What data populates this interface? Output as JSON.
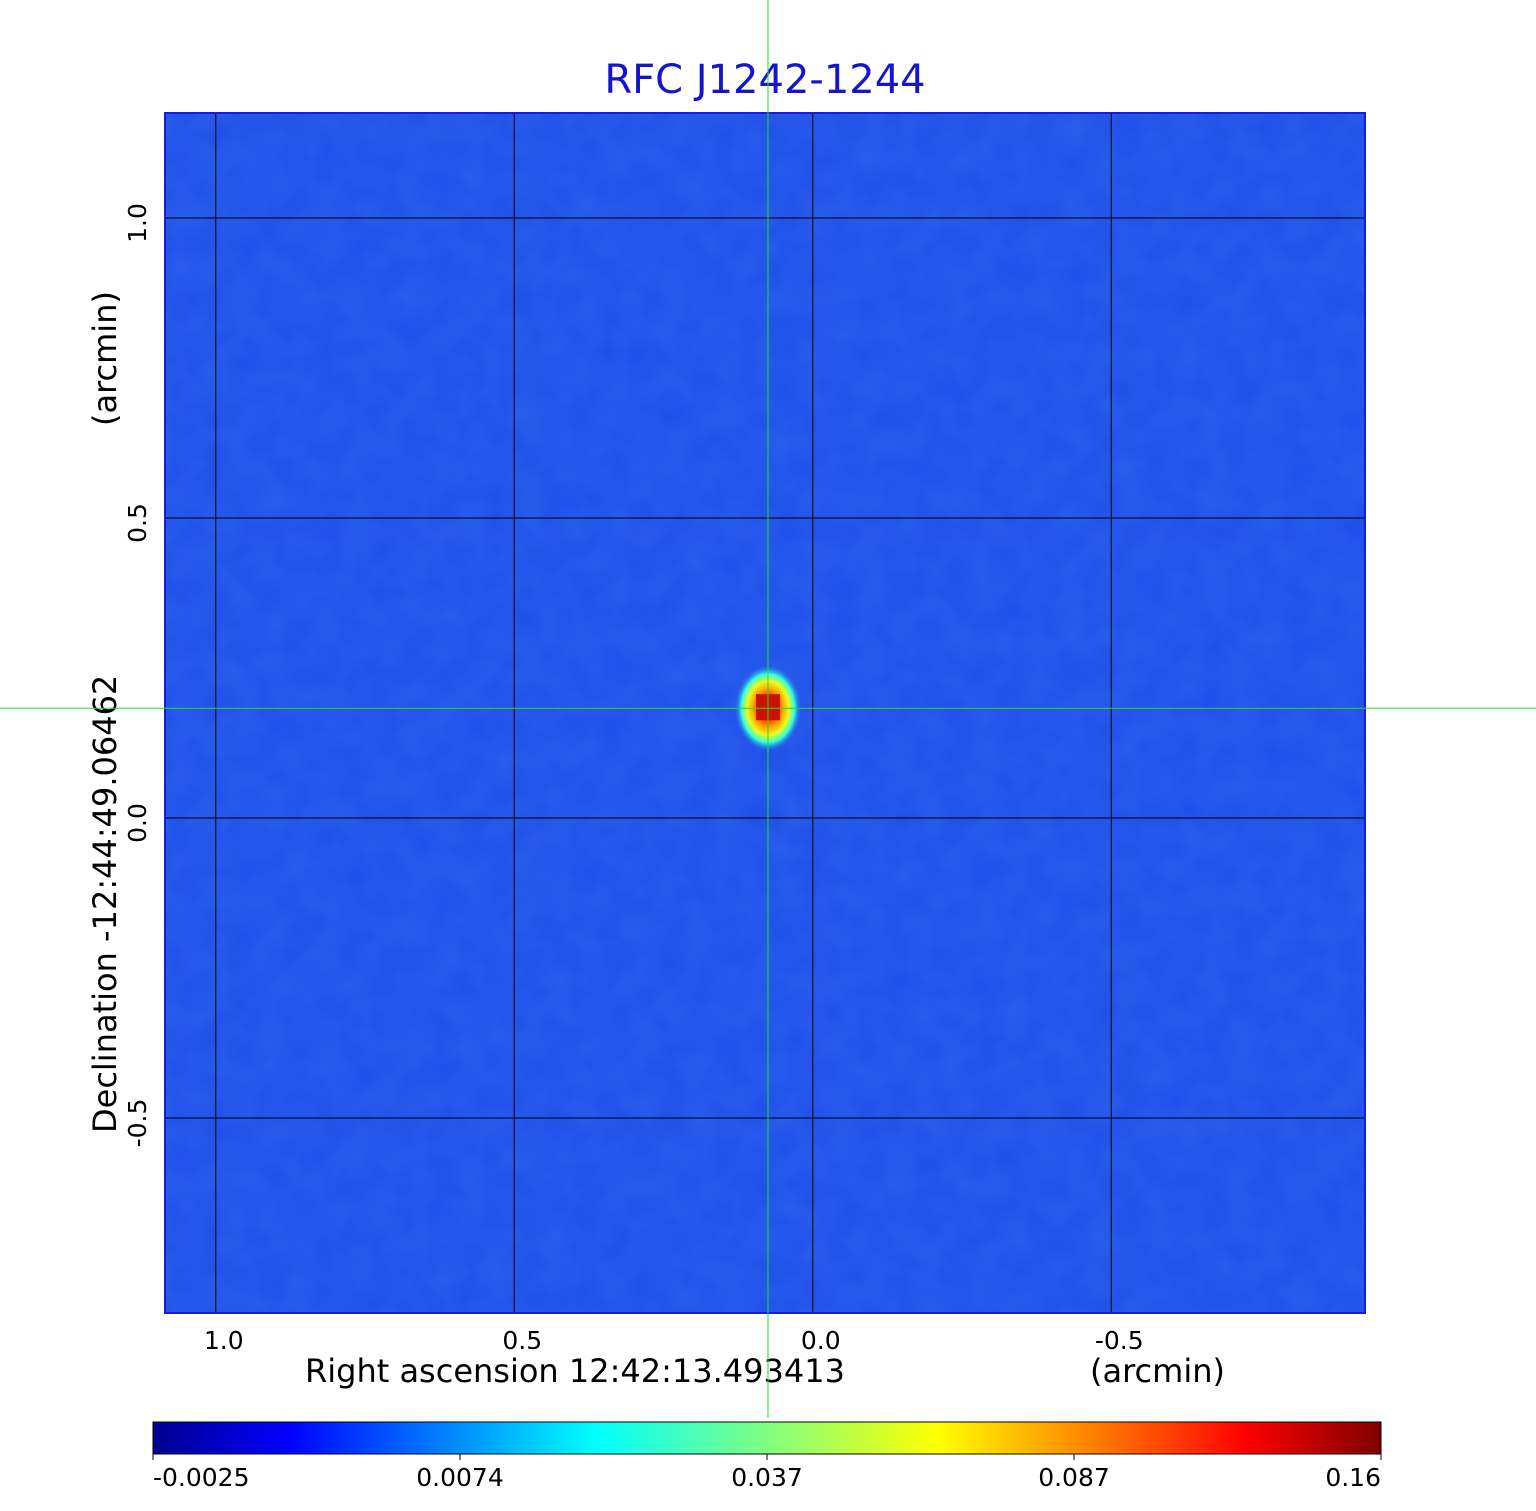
{
  "chart_data": {
    "type": "heatmap",
    "title": "RFC J1242-1244",
    "xlabel": "Right ascension  12:42:13.493413",
    "xunit": "(arcmin)",
    "ylabel": "Declination  -12:44:49.06462",
    "yunit": "(arcmin)",
    "x_ticks": [
      "1.0",
      "0.5",
      "0.0",
      "-0.5"
    ],
    "y_ticks": [
      "1.0",
      "0.5",
      "0.0",
      "-0.5"
    ],
    "x_tick_values": [
      1.0,
      0.5,
      0.0,
      -0.5
    ],
    "y_tick_values": [
      1.0,
      0.5,
      0.0,
      -0.5
    ],
    "xlim": [
      1.085,
      -0.925
    ],
    "ylim": [
      -0.825,
      1.175
    ],
    "grid": true,
    "crosshair": {
      "x": 0.075,
      "y": 0.183
    },
    "source_peak": {
      "x": 0.075,
      "y": 0.183,
      "value": 0.16
    },
    "colorbar": {
      "ticks": [
        "-0.0025",
        "0.0074",
        "0.037",
        "0.087",
        "0.16"
      ],
      "colormap": "jet"
    },
    "background_color": "#1e4ee8",
    "grid_color": "#000000",
    "crosshair_color": "#22dd22"
  }
}
